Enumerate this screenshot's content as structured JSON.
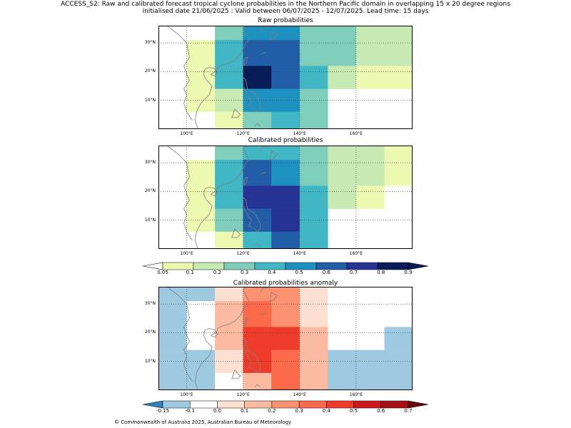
{
  "header": {
    "line1": "ACCESS_S2: Raw and calibrated forecast tropical cyclone probabilities in the Northern Pacific domain in overlapping 15 x 20 degree regions",
    "line2": "initialised date 21/06/2025 :  Valid between 06/07/2025 - 12/07/2025. Lead time: 15 days"
  },
  "footer": "© Commonwealth of Australia 2025, Australian Bureau of Meteorology",
  "colors": {
    "prob": [
      "#ffffd9",
      "#edf8b1",
      "#c7e9b4",
      "#7fcdbb",
      "#41b6c4",
      "#1d91c0",
      "#225ea8",
      "#253494",
      "#081d58"
    ],
    "anom": [
      "#3182bd",
      "#9ecae1",
      "#ffffff",
      "#fee0d2",
      "#fcbba1",
      "#fc9272",
      "#fb6a4a",
      "#ef3b2c",
      "#cb181d",
      "#a50f15"
    ],
    "coast": "#808080"
  },
  "chart_data": [
    {
      "type": "heatmap",
      "title": "Raw probabilities",
      "x_ticks": [
        "100°E",
        "120°E",
        "140°E",
        "160°E"
      ],
      "y_ticks": [
        "10°N",
        "20°N",
        "30°N"
      ],
      "x_range": [
        90,
        180
      ],
      "y_range": [
        0,
        36
      ],
      "x_edges": [
        90,
        100,
        110,
        120,
        130,
        140,
        150,
        160,
        170,
        180
      ],
      "y_edges": [
        36,
        31,
        22,
        14,
        6,
        0
      ],
      "values": [
        [
          null,
          null,
          0.2,
          0.4,
          0.4,
          0.2,
          0.2,
          0.15,
          0.15
        ],
        [
          null,
          0.05,
          0.3,
          0.5,
          0.5,
          0.2,
          0.2,
          0.15,
          0.15
        ],
        [
          null,
          0.05,
          0.3,
          0.7,
          0.5,
          0.3,
          0.15,
          0.05,
          0.05
        ],
        [
          null,
          0.05,
          0.15,
          0.4,
          0.4,
          0.2,
          null,
          null,
          null
        ],
        [
          null,
          null,
          0.05,
          0.2,
          0.3,
          0.2,
          null,
          null,
          null
        ]
      ]
    },
    {
      "type": "heatmap",
      "title": "Calibrated probabilities",
      "x_ticks": [
        "100°E",
        "120°E",
        "140°E",
        "160°E"
      ],
      "y_ticks": [
        "10°N",
        "20°N",
        "30°N"
      ],
      "x_range": [
        90,
        180
      ],
      "y_range": [
        0,
        36
      ],
      "x_edges": [
        90,
        100,
        110,
        120,
        130,
        140,
        150,
        160,
        170,
        180
      ],
      "y_edges": [
        36,
        31,
        22,
        14,
        6,
        0
      ],
      "values": [
        [
          null,
          null,
          0.2,
          0.3,
          0.3,
          0.2,
          0.15,
          0.15,
          0.05
        ],
        [
          null,
          0.05,
          0.3,
          0.5,
          0.4,
          0.2,
          0.15,
          0.15,
          0.05
        ],
        [
          null,
          0.05,
          0.3,
          0.6,
          0.6,
          0.3,
          0.15,
          0.05,
          null
        ],
        [
          null,
          0.05,
          0.2,
          0.5,
          0.6,
          0.3,
          null,
          null,
          null
        ],
        [
          null,
          null,
          0.05,
          0.3,
          0.5,
          0.3,
          null,
          null,
          null
        ]
      ]
    },
    {
      "type": "heatmap",
      "title": "Calibrated probabilities anomaly",
      "x_ticks": [
        "100°E",
        "120°E",
        "140°E",
        "160°E"
      ],
      "y_ticks": [
        "10°N",
        "20°N",
        "30°N"
      ],
      "x_range": [
        90,
        180
      ],
      "y_range": [
        0,
        36
      ],
      "x_edges": [
        90,
        100,
        110,
        120,
        130,
        140,
        150,
        160,
        170,
        180
      ],
      "y_edges": [
        36,
        31,
        22,
        14,
        6,
        0
      ],
      "values": [
        [
          -0.15,
          -0.15,
          0.05,
          0.25,
          0.25,
          0.05,
          null,
          null,
          -0.05
        ],
        [
          -0.15,
          -0.05,
          0.15,
          0.35,
          0.25,
          0.05,
          null,
          null,
          -0.05
        ],
        [
          -0.15,
          -0.05,
          0.15,
          0.45,
          0.45,
          0.15,
          null,
          -0.05,
          -0.15
        ],
        [
          -0.15,
          -0.15,
          0.05,
          0.45,
          0.35,
          0.15,
          -0.15,
          -0.15,
          -0.15
        ],
        [
          -0.15,
          -0.15,
          -0.05,
          0.15,
          0.35,
          0.15,
          -0.15,
          -0.15,
          -0.15
        ]
      ]
    }
  ],
  "colorbars": {
    "prob": {
      "labels": [
        "0.05",
        "0.1",
        "0.2",
        "0.3",
        "0.4",
        "0.5",
        "0.6",
        "0.7",
        "0.8",
        "0.9"
      ]
    },
    "anom": {
      "labels": [
        "-0.15",
        "-0.1",
        "0.0",
        "0.1",
        "0.2",
        "0.3",
        "0.4",
        "0.5",
        "0.6",
        "0.7"
      ]
    }
  }
}
